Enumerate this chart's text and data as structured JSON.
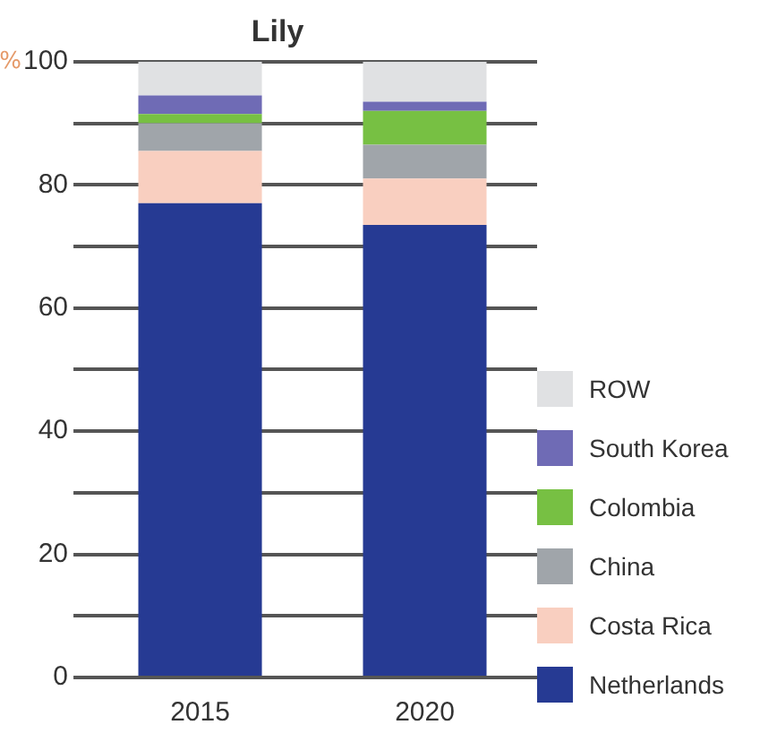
{
  "chart_data": {
    "type": "bar",
    "title": "Lily",
    "ylabel": "%",
    "categories": [
      "2015",
      "2020"
    ],
    "stacked": true,
    "series": [
      {
        "name": "Netherlands",
        "color": "#263a93",
        "values": [
          77,
          73.5
        ]
      },
      {
        "name": "Costa Rica",
        "color": "#f9cfc0",
        "values": [
          8.5,
          7.5
        ]
      },
      {
        "name": "China",
        "color": "#a0a5aa",
        "values": [
          4.5,
          5.5
        ]
      },
      {
        "name": "Colombia",
        "color": "#77c043",
        "values": [
          1.5,
          5.5
        ]
      },
      {
        "name": "South Korea",
        "color": "#6f6bb5",
        "values": [
          3,
          1.5
        ]
      },
      {
        "name": "ROW",
        "color": "#e0e1e3",
        "values": [
          5.5,
          6.5
        ]
      }
    ],
    "ylim": [
      0,
      100
    ],
    "yticks": [
      0,
      {
        "value": 10,
        "label": null
      },
      20,
      {
        "value": 30,
        "label": null
      },
      40,
      {
        "value": 50,
        "label": null
      },
      60,
      {
        "value": 70,
        "label": null
      },
      80,
      {
        "value": 90,
        "label": null
      },
      100
    ],
    "grid": "y",
    "legend": "bottom right"
  }
}
